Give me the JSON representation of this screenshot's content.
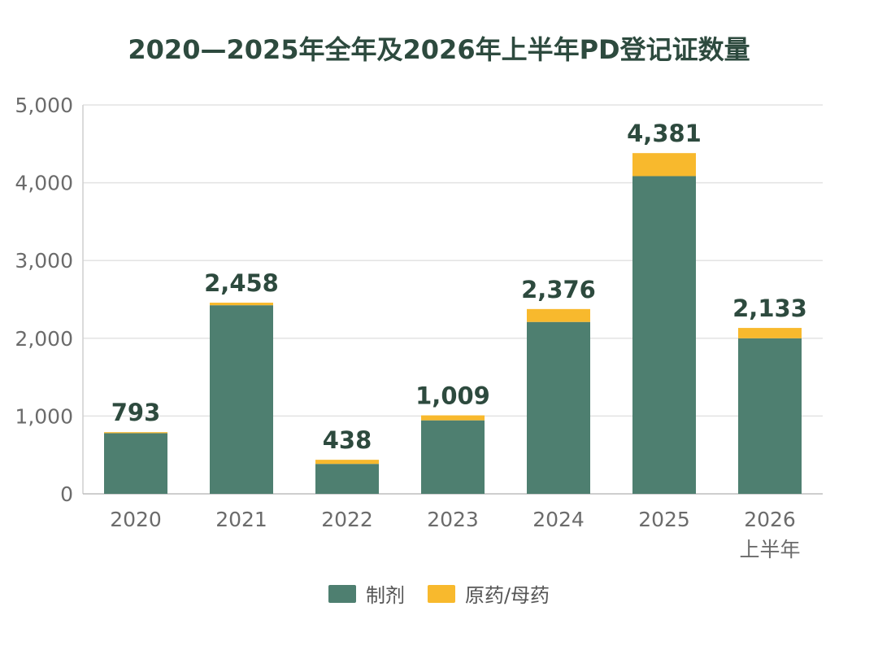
{
  "chart_data": {
    "type": "bar",
    "stacked": true,
    "title": "2020—2025年全年及2026年上半年PD登记证数量",
    "categories": [
      [
        "2020"
      ],
      [
        "2021"
      ],
      [
        "2022"
      ],
      [
        "2023"
      ],
      [
        "2024"
      ],
      [
        "2025"
      ],
      [
        "2026",
        "上半年"
      ]
    ],
    "series": [
      {
        "name": "制剂",
        "color": "#4e7f70",
        "values": [
          780,
          2425,
          385,
          945,
          2210,
          4085,
          2000
        ]
      },
      {
        "name": "原药/母药",
        "color": "#f8b92d",
        "values": [
          13,
          33,
          53,
          64,
          166,
          296,
          133
        ]
      }
    ],
    "totals": [
      793,
      2458,
      438,
      1009,
      2376,
      4381,
      2133
    ],
    "total_labels": [
      "793",
      "2,458",
      "438",
      "1,009",
      "2,376",
      "4,381",
      "2,133"
    ],
    "yticks": [
      0,
      1000,
      2000,
      3000,
      4000,
      5000
    ],
    "ytick_labels": [
      "0",
      "1,000",
      "2,000",
      "3,000",
      "4,000",
      "5,000"
    ],
    "ylim": [
      0,
      5000
    ],
    "grid": true,
    "legend_position": "bottom",
    "xlabel": "",
    "ylabel": ""
  }
}
